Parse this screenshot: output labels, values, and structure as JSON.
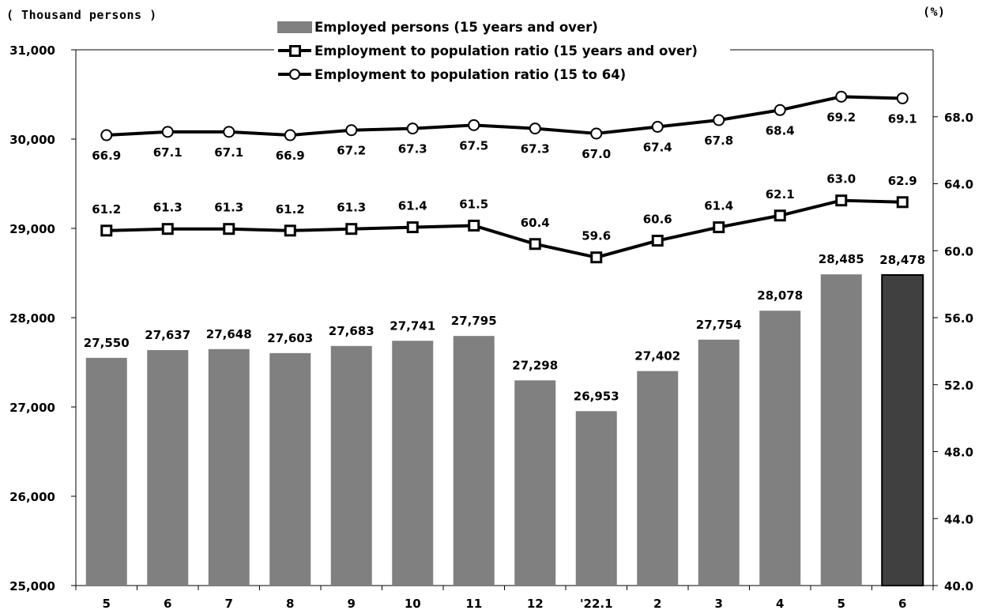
{
  "chart_data": {
    "type": "bar",
    "left_unit": "( Thousand persons )",
    "right_unit": "(%)",
    "categories": [
      "5",
      "6",
      "7",
      "8",
      "9",
      "10",
      "11",
      "12",
      "'22.1",
      "2",
      "3",
      "4",
      "5",
      "6"
    ],
    "y_left": {
      "min": 25000,
      "max": 31000,
      "ticks": [
        "25,000",
        "26,000",
        "27,000",
        "28,000",
        "29,000",
        "30,000",
        "31,000"
      ]
    },
    "y_right": {
      "min": 40.0,
      "max": 72.0,
      "ticks": [
        "40.0",
        "44.0",
        "48.0",
        "52.0",
        "56.0",
        "60.0",
        "64.0",
        "68.0"
      ]
    },
    "series": [
      {
        "name": "Employed persons (15 years and over)",
        "kind": "bar",
        "axis": "left",
        "values": [
          27550,
          27637,
          27648,
          27603,
          27683,
          27741,
          27795,
          27298,
          26953,
          27402,
          27754,
          28078,
          28485,
          28478
        ],
        "labels": [
          "27,550",
          "27,637",
          "27,648",
          "27,603",
          "27,683",
          "27,741",
          "27,795",
          "27,298",
          "26,953",
          "27,402",
          "27,754",
          "28,078",
          "28,485",
          "28,478"
        ],
        "color": "#808080",
        "highlight_color": "#404040"
      },
      {
        "name": "Employment to population ratio (15 years and over)",
        "kind": "line",
        "marker": "square",
        "axis": "right",
        "values": [
          61.2,
          61.3,
          61.3,
          61.2,
          61.3,
          61.4,
          61.5,
          60.4,
          59.6,
          60.6,
          61.4,
          62.1,
          63.0,
          62.9
        ],
        "labels": [
          "61.2",
          "61.3",
          "61.3",
          "61.2",
          "61.3",
          "61.4",
          "61.5",
          "60.4",
          "59.6",
          "60.6",
          "61.4",
          "62.1",
          "63.0",
          "62.9"
        ]
      },
      {
        "name": "Employment to population ratio (15 to 64)",
        "kind": "line",
        "marker": "circle",
        "axis": "right",
        "values": [
          66.9,
          67.1,
          67.1,
          66.9,
          67.2,
          67.3,
          67.5,
          67.3,
          67.0,
          67.4,
          67.8,
          68.4,
          69.2,
          69.1
        ],
        "labels": [
          "66.9",
          "67.1",
          "67.1",
          "66.9",
          "67.2",
          "67.3",
          "67.5",
          "67.3",
          "67.0",
          "67.4",
          "67.8",
          "68.4",
          "69.2",
          "69.1"
        ]
      }
    ],
    "legend_position": "top-center"
  }
}
